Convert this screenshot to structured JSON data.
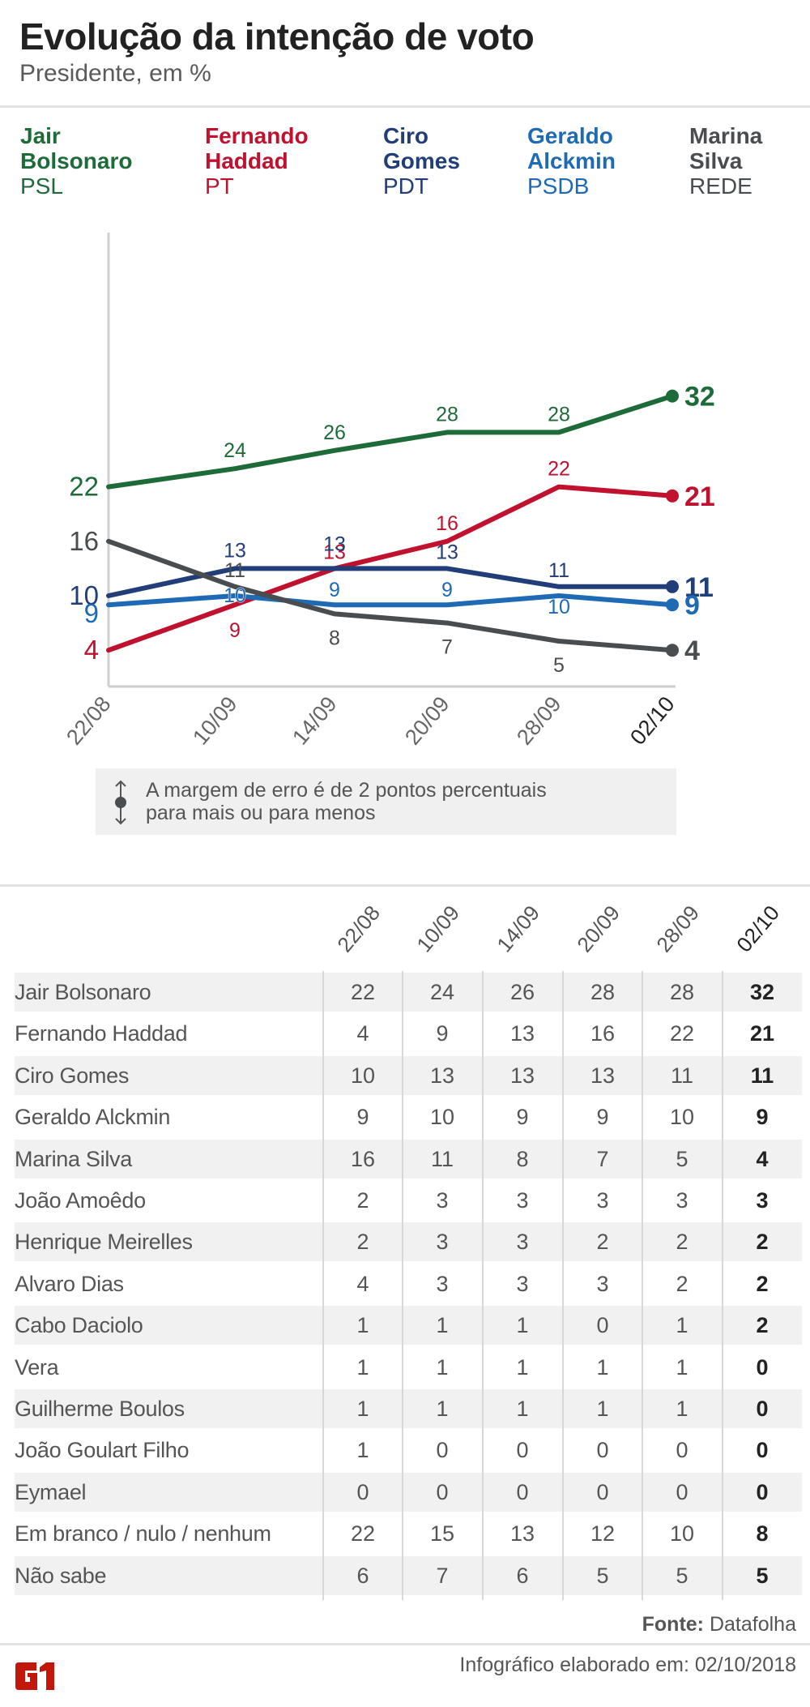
{
  "header": {
    "title": "Evolução da intenção de voto",
    "subtitle": "Presidente, em %"
  },
  "legend": [
    {
      "name_line1": "Jair",
      "name_line2": "Bolsonaro",
      "party": "PSL",
      "color": "#1e6b3a"
    },
    {
      "name_line1": "Fernando",
      "name_line2": "Haddad",
      "party": "PT",
      "color": "#c0112f"
    },
    {
      "name_line1": "Ciro",
      "name_line2": "Gomes",
      "party": "PDT",
      "color": "#213e78"
    },
    {
      "name_line1": "Geraldo",
      "name_line2": "Alckmin",
      "party": "PSDB",
      "color": "#1e6ab5"
    },
    {
      "name_line1": "Marina",
      "name_line2": "Silva",
      "party": "REDE",
      "color": "#4a4d4f"
    }
  ],
  "chart_data": {
    "type": "line",
    "title": "Evolução da intenção de voto",
    "subtitle": "Presidente, em %",
    "xlabel": "",
    "ylabel": "%",
    "x": [
      "22/08",
      "10/09",
      "14/09",
      "20/09",
      "28/09",
      "02/10"
    ],
    "ylim": [
      0,
      34
    ],
    "grid": false,
    "legend_position": "top",
    "series": [
      {
        "name": "Jair Bolsonaro",
        "party": "PSL",
        "color": "#1e6b3a",
        "values": [
          22,
          24,
          26,
          28,
          28,
          32
        ]
      },
      {
        "name": "Fernando Haddad",
        "party": "PT",
        "color": "#c0112f",
        "values": [
          4,
          9,
          13,
          16,
          22,
          21
        ]
      },
      {
        "name": "Ciro Gomes",
        "party": "PDT",
        "color": "#213e78",
        "values": [
          10,
          13,
          13,
          13,
          11,
          11
        ]
      },
      {
        "name": "Geraldo Alckmin",
        "party": "PSDB",
        "color": "#1e6ab5",
        "values": [
          9,
          10,
          9,
          9,
          10,
          9
        ]
      },
      {
        "name": "Marina Silva",
        "party": "REDE",
        "color": "#4a4d4f",
        "values": [
          16,
          11,
          8,
          7,
          5,
          4
        ]
      }
    ]
  },
  "note": {
    "line1": "A margem de erro é de 2 pontos percentuais",
    "line2": "para mais ou para menos",
    "icon": "error-margin-icon"
  },
  "table": {
    "columns": [
      "22/08",
      "10/09",
      "14/09",
      "20/09",
      "28/09",
      "02/10"
    ],
    "rows": [
      {
        "name": "Jair Bolsonaro",
        "values": [
          "22",
          "24",
          "26",
          "28",
          "28",
          "32"
        ]
      },
      {
        "name": "Fernando Haddad",
        "values": [
          "4",
          "9",
          "13",
          "16",
          "22",
          "21"
        ]
      },
      {
        "name": "Ciro Gomes",
        "values": [
          "10",
          "13",
          "13",
          "13",
          "11",
          "11"
        ]
      },
      {
        "name": "Geraldo Alckmin",
        "values": [
          "9",
          "10",
          "9",
          "9",
          "10",
          "9"
        ]
      },
      {
        "name": "Marina Silva",
        "values": [
          "16",
          "11",
          "8",
          "7",
          "5",
          "4"
        ]
      },
      {
        "name": "João Amoêdo",
        "values": [
          "2",
          "3",
          "3",
          "3",
          "3",
          "3"
        ]
      },
      {
        "name": "Henrique Meirelles",
        "values": [
          "2",
          "3",
          "3",
          "2",
          "2",
          "2"
        ]
      },
      {
        "name": "Alvaro Dias",
        "values": [
          "4",
          "3",
          "3",
          "3",
          "2",
          "2"
        ]
      },
      {
        "name": "Cabo Daciolo",
        "values": [
          "1",
          "1",
          "1",
          "0",
          "1",
          "2"
        ]
      },
      {
        "name": "Vera",
        "values": [
          "1",
          "1",
          "1",
          "1",
          "1",
          "0"
        ]
      },
      {
        "name": "Guilherme Boulos",
        "values": [
          "1",
          "1",
          "1",
          "1",
          "1",
          "0"
        ]
      },
      {
        "name": "João Goulart Filho",
        "values": [
          "1",
          "0",
          "0",
          "0",
          "0",
          "0"
        ]
      },
      {
        "name": "Eymael",
        "values": [
          "0",
          "0",
          "0",
          "0",
          "0",
          "0"
        ]
      },
      {
        "name": "Em branco / nulo / nenhum",
        "values": [
          "22",
          "15",
          "13",
          "12",
          "10",
          "8"
        ]
      },
      {
        "name": "Não sabe",
        "values": [
          "6",
          "7",
          "6",
          "5",
          "5",
          "5"
        ]
      }
    ]
  },
  "source": {
    "label": "Fonte:",
    "value": "Datafolha"
  },
  "footer": {
    "logo": "G1",
    "text": "Infográfico elaborado em: 02/10/2018",
    "logo_color": "#c4170c"
  }
}
